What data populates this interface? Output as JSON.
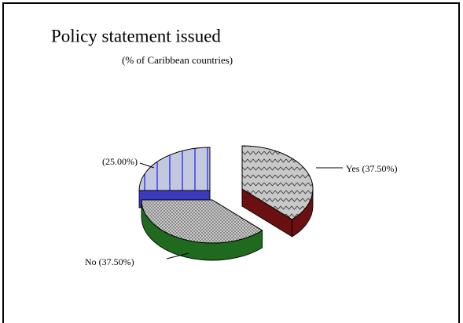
{
  "chart_data": {
    "type": "pie",
    "title": "Policy statement issued",
    "subtitle": "(% of Caribbean countries)",
    "categories": [
      "Yes",
      "No",
      null
    ],
    "values": [
      37.5,
      37.5,
      25
    ],
    "value_labels": [
      "(37.50%)",
      "(37.50%)",
      "(25.00%)"
    ],
    "colors": [
      "#c8c8c8",
      "#c8c8c8",
      "#c4c8dc"
    ],
    "side_colors": [
      "#6a1010",
      "#1f6a1f",
      "#3a3ac0"
    ]
  }
}
